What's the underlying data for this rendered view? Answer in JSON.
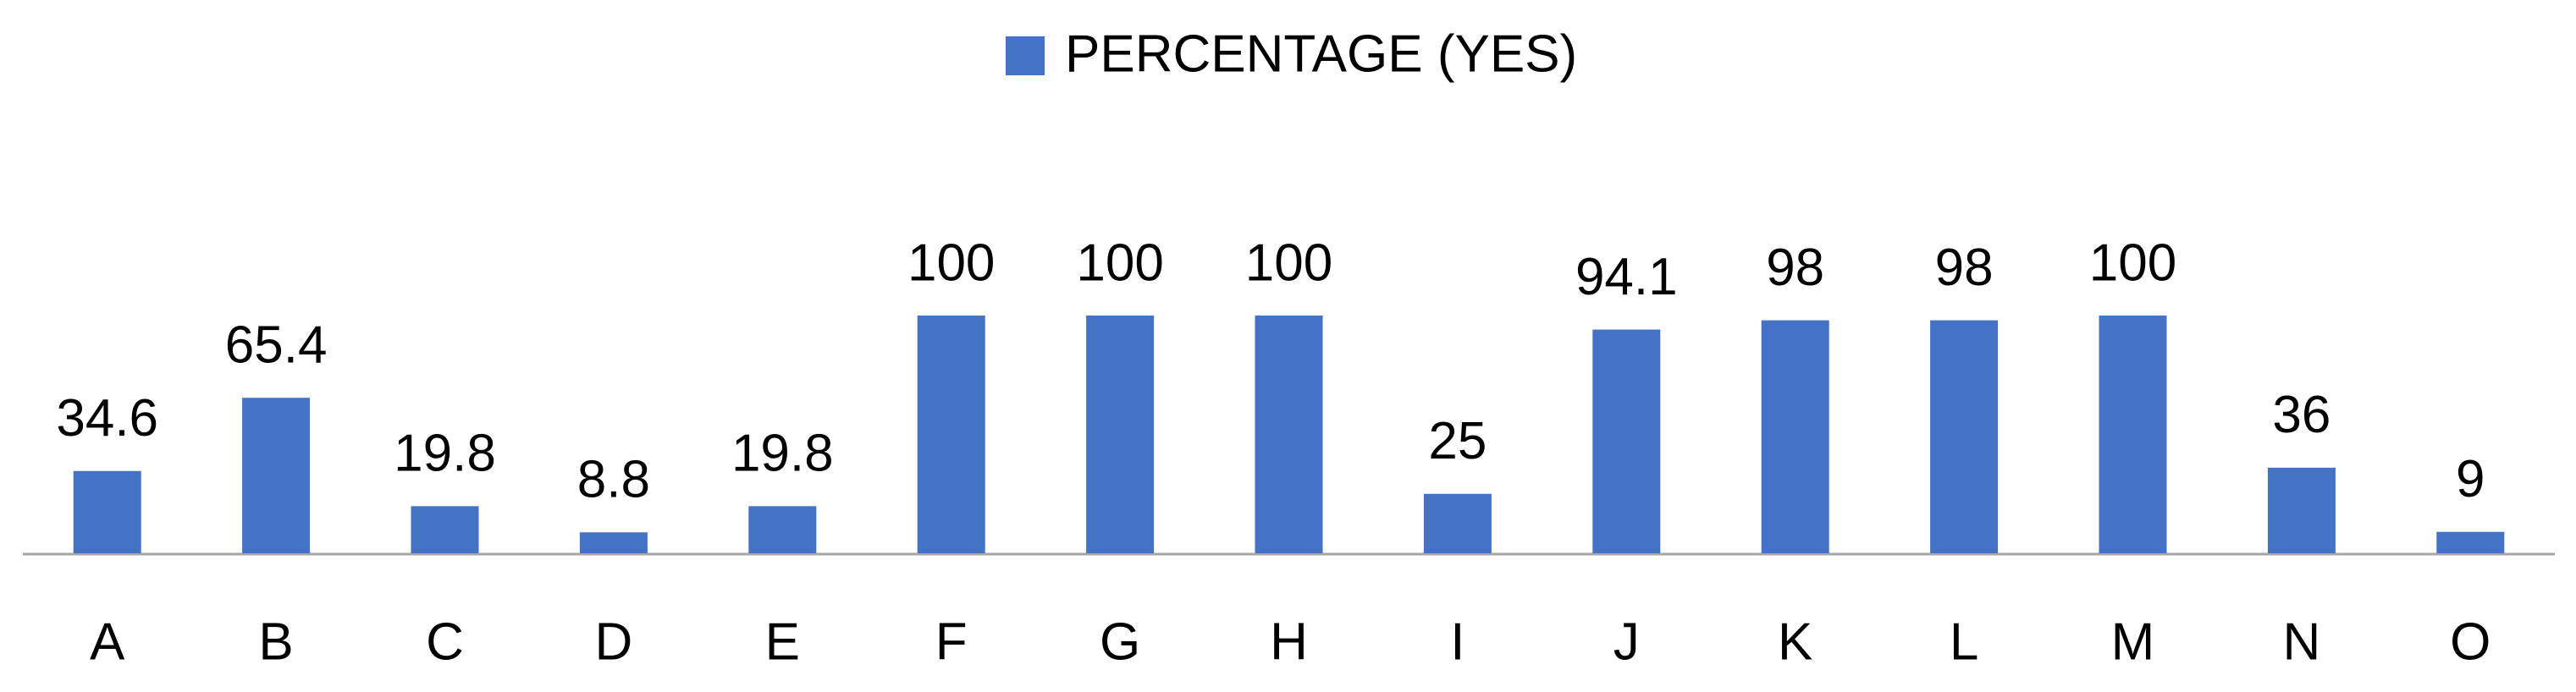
{
  "chart_data": {
    "type": "bar",
    "categories": [
      "A",
      "B",
      "C",
      "D",
      "E",
      "F",
      "G",
      "H",
      "I",
      "J",
      "K",
      "L",
      "M",
      "N",
      "O"
    ],
    "series": [
      {
        "name": "PERCENTAGE (YES)",
        "color": "#4472c4",
        "values": [
          34.6,
          65.4,
          19.8,
          8.8,
          19.8,
          100,
          100,
          100,
          25,
          94.1,
          98,
          98,
          100,
          36,
          9
        ]
      }
    ],
    "ylim": [
      0,
      100
    ],
    "legend": "top"
  }
}
